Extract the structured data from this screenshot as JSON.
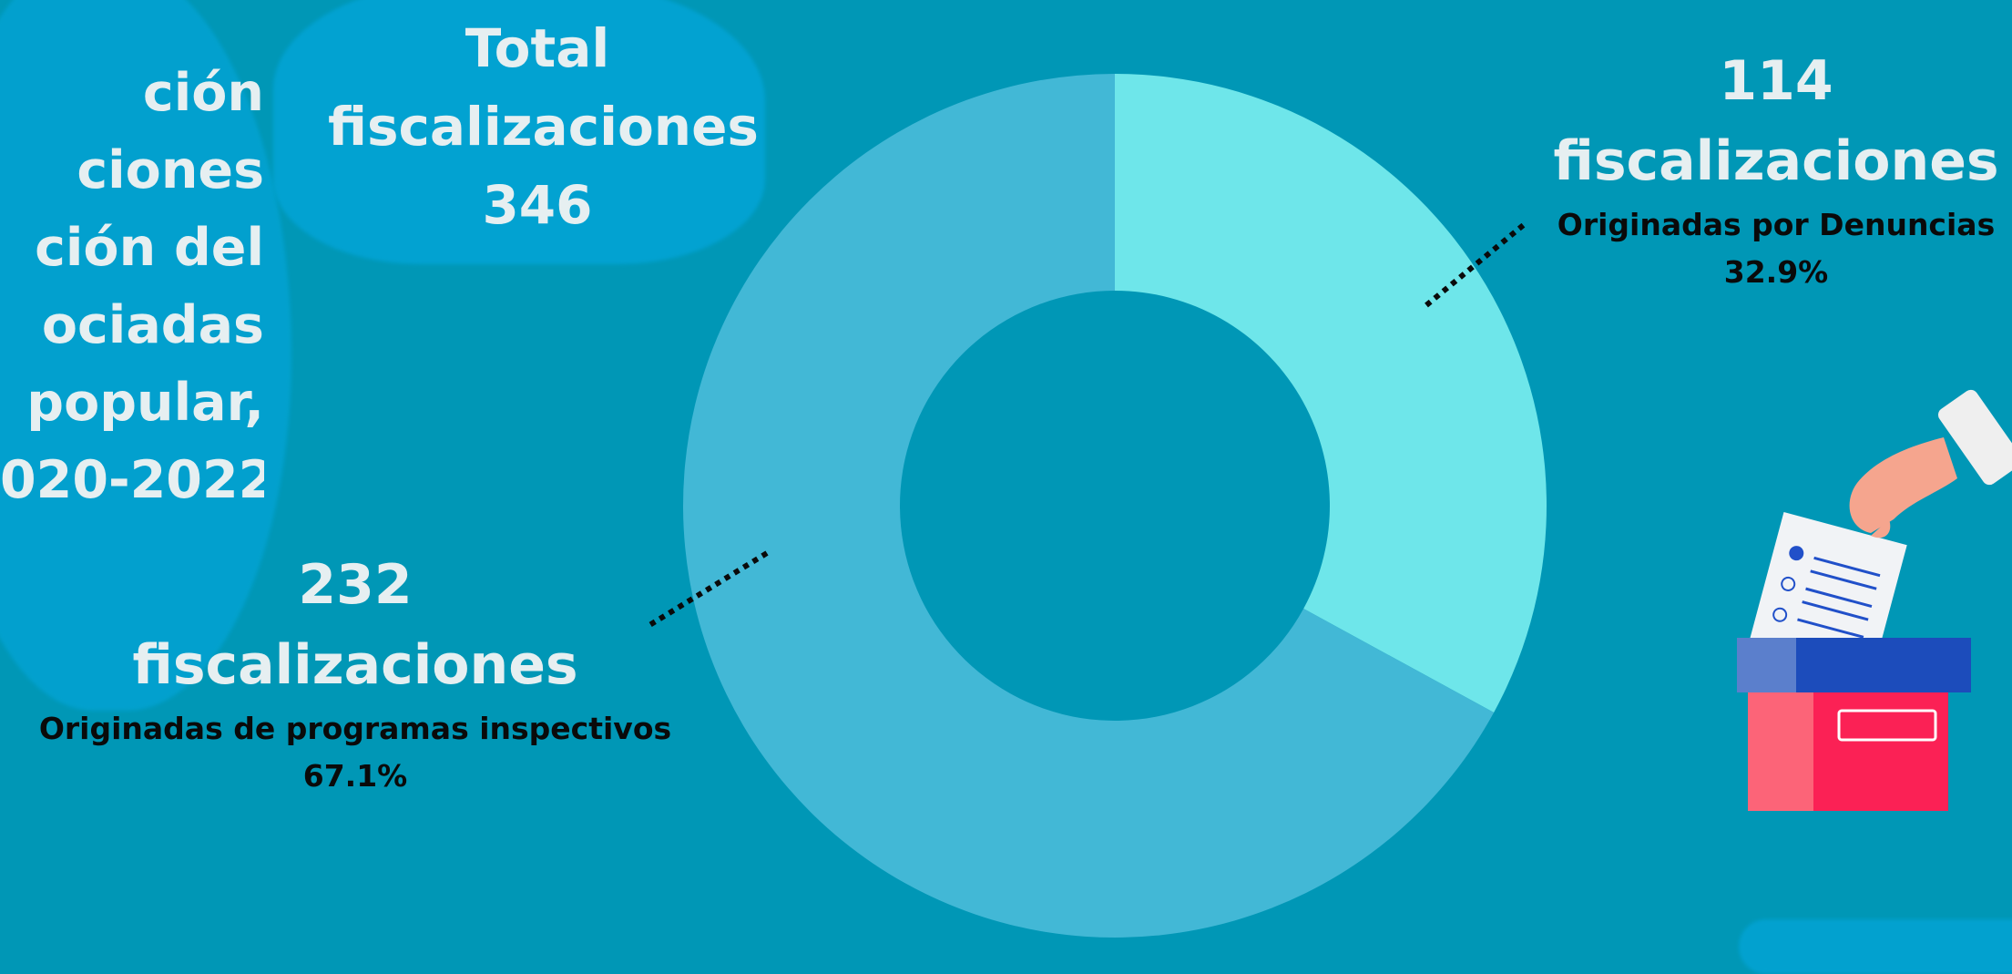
{
  "title_fragments": [
    "ción",
    "ciones",
    "ción del",
    "ociadas",
    "popular,",
    "020-2022"
  ],
  "total": {
    "line1": "Total",
    "line2": "fiscalizaciones",
    "value": "346"
  },
  "labels": {
    "denuncias": {
      "count": "114",
      "unit": "fiscalizaciones",
      "desc": "Originadas por Denuncias",
      "percent": "32.9%"
    },
    "programas": {
      "count": "232",
      "unit": "fiscalizaciones",
      "desc": "Originadas de programas inspectivos",
      "percent": "67.1%"
    }
  },
  "chart_data": {
    "type": "pie",
    "categories": [
      "Originadas por Denuncias",
      "Originadas de programas inspectivos"
    ],
    "values": [
      114,
      232
    ],
    "percent": [
      32.9,
      67.1
    ],
    "total": 346,
    "colors": [
      "#6ee6ea",
      "#42b8d6"
    ],
    "donut": true
  },
  "colors": {
    "background": "#0097b6",
    "text_light": "#e6eff1",
    "text_dark": "#0a0a0a"
  },
  "icons": [
    "ballot-box-illustration"
  ]
}
